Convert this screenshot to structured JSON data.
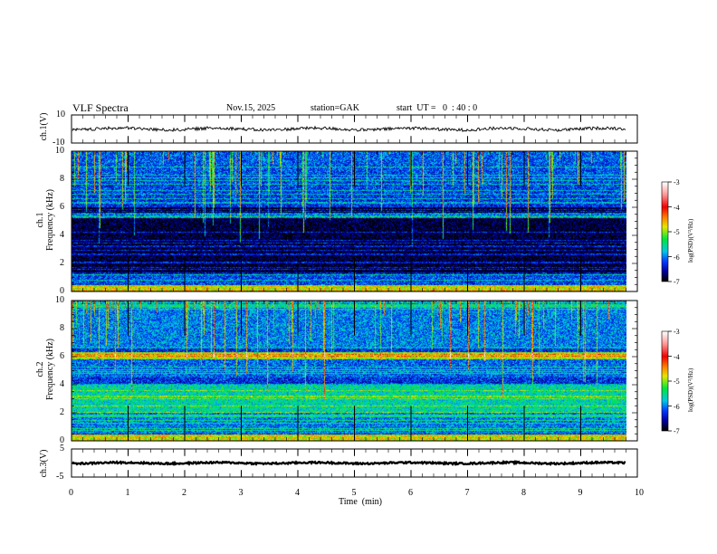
{
  "header": {
    "title": "VLF Spectra",
    "date": "Nov.15, 2025",
    "station": "station=GAK",
    "start_ut": "start  UT =   0  : 40 : 0"
  },
  "chart_data": [
    {
      "type": "line",
      "name": "ch1",
      "ylabel": "ch.1(V)",
      "ylim": [
        -10,
        10
      ],
      "yticks": [
        "10",
        "-10"
      ],
      "baseline_value": 0,
      "xlim": [
        0,
        10
      ]
    },
    {
      "type": "heatmap",
      "name": "ch1-spectrogram",
      "ylabel_line1": "ch.1",
      "ylabel_line2": "Frequency  (kHz)",
      "ylim": [
        0,
        10
      ],
      "yticks": [
        "0",
        "2",
        "4",
        "6",
        "8",
        "10"
      ],
      "xlim": [
        0,
        10
      ],
      "data_end_min": 9.8,
      "colorbar": {
        "label": "log(PSD)(V²/Hz)",
        "range": [
          -7,
          -3
        ],
        "ticks": [
          "-3",
          "-4",
          "-5",
          "-6",
          "-7"
        ]
      }
    },
    {
      "type": "heatmap",
      "name": "ch2-spectrogram",
      "ylabel_line1": "ch.2",
      "ylabel_line2": "Frequency  (kHz)",
      "ylim": [
        0,
        10
      ],
      "yticks": [
        "0",
        "2",
        "4",
        "6",
        "8",
        "10"
      ],
      "xlim": [
        0,
        10
      ],
      "data_end_min": 9.8,
      "colorbar": {
        "label": "log(PSD)(V²/Hz)",
        "range": [
          -7,
          -3
        ],
        "ticks": [
          "-3",
          "-4",
          "-5",
          "-6",
          "-7"
        ]
      }
    },
    {
      "type": "line",
      "name": "ch3",
      "ylabel": "ch.3(V)",
      "ylim": [
        -5,
        5
      ],
      "yticks": [
        "5",
        "-5"
      ],
      "baseline_value": 0,
      "xlim": [
        0,
        10
      ]
    }
  ],
  "xaxis": {
    "label": "Time  (min)",
    "ticks": [
      "0",
      "1",
      "2",
      "3",
      "4",
      "5",
      "6",
      "7",
      "8",
      "9",
      "10"
    ]
  }
}
